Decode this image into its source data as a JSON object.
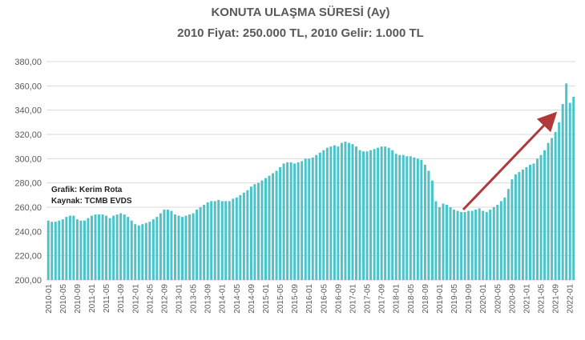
{
  "chart_data": {
    "type": "bar",
    "title": "KONUTA ULAŞMA SÜRESİ (Ay)",
    "subtitle": "2010 Fiyat: 250.000 TL, 2010 Gelir: 1.000 TL",
    "annotations": [
      "Grafik: Kerim Rota",
      "Kaynak: TCMB EVDS"
    ],
    "color": "#4bc3c9",
    "grid": true,
    "ylim": [
      200,
      380
    ],
    "yticks": [
      {
        "value": 200,
        "label": "200,00"
      },
      {
        "value": 220,
        "label": "220,00"
      },
      {
        "value": 240,
        "label": "240,00"
      },
      {
        "value": 260,
        "label": "260,00"
      },
      {
        "value": 280,
        "label": "280,00"
      },
      {
        "value": 300,
        "label": "300,00"
      },
      {
        "value": 320,
        "label": "320,00"
      },
      {
        "value": 340,
        "label": "340,00"
      },
      {
        "value": 360,
        "label": "360,00"
      },
      {
        "value": 380,
        "label": "380,00"
      }
    ],
    "categories": [
      "2010-01",
      null,
      null,
      null,
      "2010-05",
      null,
      null,
      null,
      "2010-09",
      null,
      null,
      null,
      "2011-01",
      null,
      null,
      null,
      "2011-05",
      null,
      null,
      null,
      "2011-09",
      null,
      null,
      null,
      "2012-01",
      null,
      null,
      null,
      "2012-05",
      null,
      null,
      null,
      "2012-09",
      null,
      null,
      null,
      "2013-01",
      null,
      null,
      null,
      "2013-05",
      null,
      null,
      null,
      "2013-09",
      null,
      null,
      null,
      "2014-01",
      null,
      null,
      null,
      "2014-05",
      null,
      null,
      null,
      "2014-09",
      null,
      null,
      null,
      "2015-01",
      null,
      null,
      null,
      "2015-05",
      null,
      null,
      null,
      "2015-09",
      null,
      null,
      null,
      "2016-01",
      null,
      null,
      null,
      "2016-05",
      null,
      null,
      null,
      "2016-09",
      null,
      null,
      null,
      "2017-01",
      null,
      null,
      null,
      "2017-05",
      null,
      null,
      null,
      "2017-09",
      null,
      null,
      null,
      "2018-01",
      null,
      null,
      null,
      "2018-05",
      null,
      null,
      null,
      "2018-09",
      null,
      null,
      null,
      "2019-01",
      null,
      null,
      null,
      "2019-05",
      null,
      null,
      null,
      "2019-09",
      null,
      null,
      null,
      "2020-01",
      null,
      null,
      null,
      "2020-05",
      null,
      null,
      null,
      "2020-09",
      null,
      null,
      null,
      "2021-01",
      null,
      null,
      null,
      "2021-05",
      null,
      null,
      null,
      "2021-09",
      null,
      null,
      null,
      "2022-01",
      null
    ],
    "values": [
      249,
      248,
      248,
      249,
      250,
      252,
      253,
      253,
      250,
      249,
      249,
      251,
      253,
      254,
      254,
      254,
      253,
      251,
      253,
      254,
      255,
      254,
      252,
      249,
      246,
      245,
      246,
      247,
      248,
      250,
      252,
      255,
      258,
      258,
      257,
      254,
      253,
      252,
      253,
      254,
      255,
      258,
      260,
      262,
      264,
      265,
      265,
      266,
      265,
      265,
      265,
      267,
      268,
      270,
      272,
      274,
      277,
      279,
      280,
      282,
      284,
      286,
      288,
      290,
      293,
      296,
      297,
      297,
      296,
      297,
      298,
      300,
      300,
      301,
      303,
      305,
      307,
      309,
      310,
      311,
      310,
      313,
      314,
      313,
      312,
      310,
      307,
      306,
      306,
      307,
      308,
      309,
      310,
      310,
      309,
      307,
      304,
      303,
      303,
      302,
      302,
      301,
      300,
      299,
      295,
      290,
      282,
      265,
      260,
      263,
      262,
      260,
      258,
      257,
      256,
      256,
      257,
      257,
      258,
      259,
      257,
      256,
      258,
      260,
      262,
      265,
      268,
      275,
      283,
      287,
      289,
      291,
      293,
      295,
      296,
      300,
      303,
      307,
      313,
      317,
      322,
      330,
      345,
      362,
      346,
      351
    ]
  }
}
